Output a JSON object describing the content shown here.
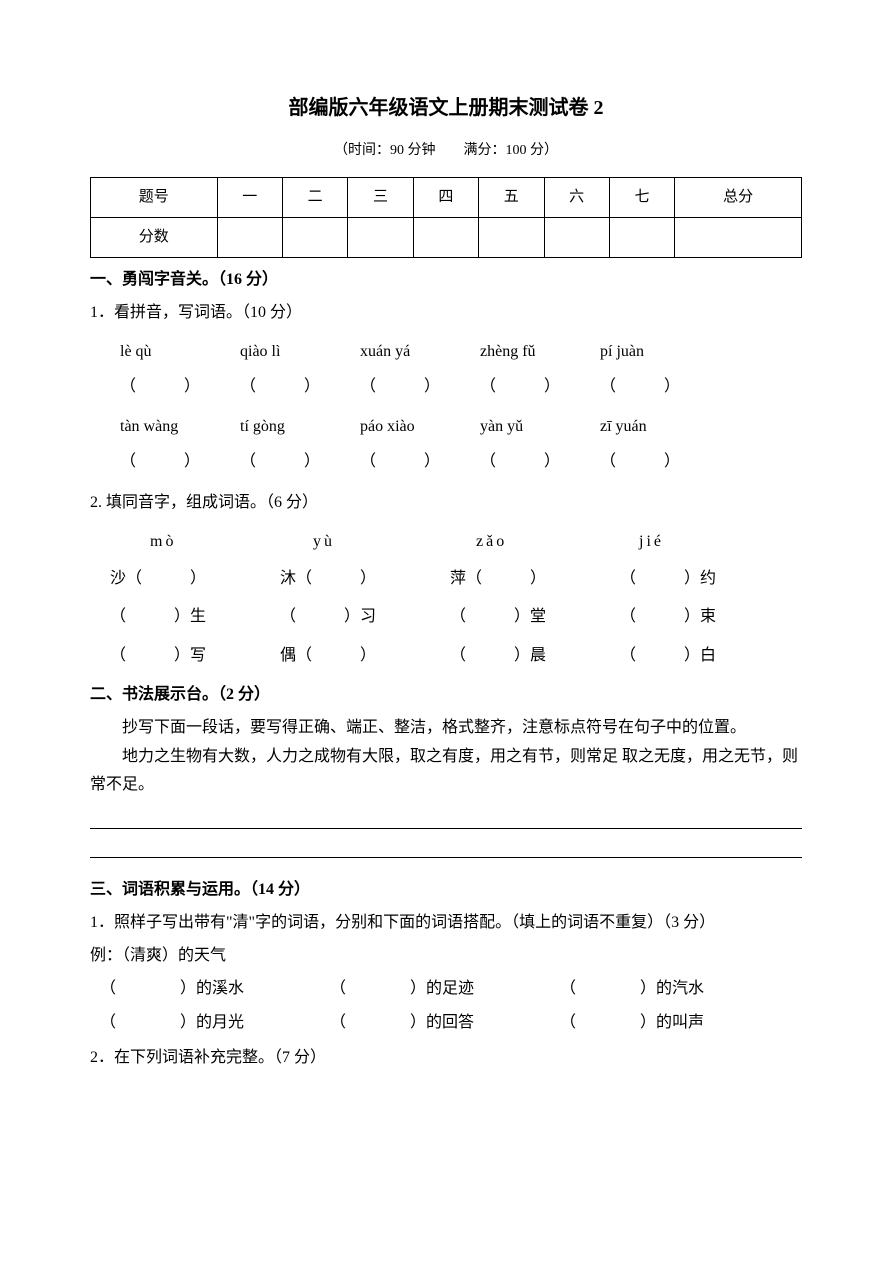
{
  "doc": {
    "title": "部编版六年级语文上册期末测试卷 2",
    "subtitle": "（时间：90 分钟　　满分：100 分）",
    "table_headers": [
      "题号",
      "一",
      "二",
      "三",
      "四",
      "五",
      "六",
      "七",
      "总分"
    ],
    "table_row2_label": "分数",
    "sec1": {
      "header": "一、勇闯字音关。（16 分）",
      "q1": "1．看拼音，写词语。（10 分）",
      "pinyin_row1": [
        "lè qù",
        "qiào lì",
        "xuán yá",
        "zhèng fǔ",
        "pí juàn"
      ],
      "blanks_row1": [
        "（　　　）",
        "（　　　）",
        "（　　　）",
        "（　　　）",
        "（　　　）"
      ],
      "pinyin_row2": [
        "tàn wàng",
        "tí gòng",
        "páo xiào",
        "yàn yǔ",
        "zī yuán"
      ],
      "blanks_row2": [
        "（　　　）",
        "（　　　）",
        "（　　　）",
        "（　　　）",
        "（　　　）"
      ],
      "q2": "2. 填同音字，组成词语。（6 分）",
      "homophone_heads": [
        "mò",
        "yù",
        "zǎo",
        "jié"
      ],
      "hrow1": [
        "沙（　　　）",
        "沐（　　　）",
        "萍（　　　）",
        "（　　　）约"
      ],
      "hrow2": [
        "（　　　）生",
        "（　　　）习",
        "（　　　）堂",
        "（　　　）束"
      ],
      "hrow3": [
        "（　　　）写",
        "偶（　　　）",
        "（　　　）晨",
        "（　　　）白"
      ]
    },
    "sec2": {
      "header": "二、书法展示台。（2 分）",
      "p1": "抄写下面一段话，要写得正确、端正、整洁，格式整齐，注意标点符号在句子中的位置。",
      "p2": "地力之生物有大数，人力之成物有大限，取之有度，用之有节，则常足 取之无度，用之无节，则常不足。"
    },
    "sec3": {
      "header": "三、词语积累与运用。（14 分）",
      "q1a": "1．照样子写出带有\"清\"字的词语，分别和下面的词语搭配。（填上的词语不重复）（3 分）",
      "example": "例：（清爽）的天气",
      "row1": [
        "（　　　　）的溪水",
        "（　　　　）的足迹",
        "（　　　　）的汽水"
      ],
      "row2": [
        "（　　　　）的月光",
        "（　　　　）的回答",
        "（　　　　）的叫声"
      ],
      "q2": "2．在下列词语补充完整。（7 分）"
    }
  }
}
